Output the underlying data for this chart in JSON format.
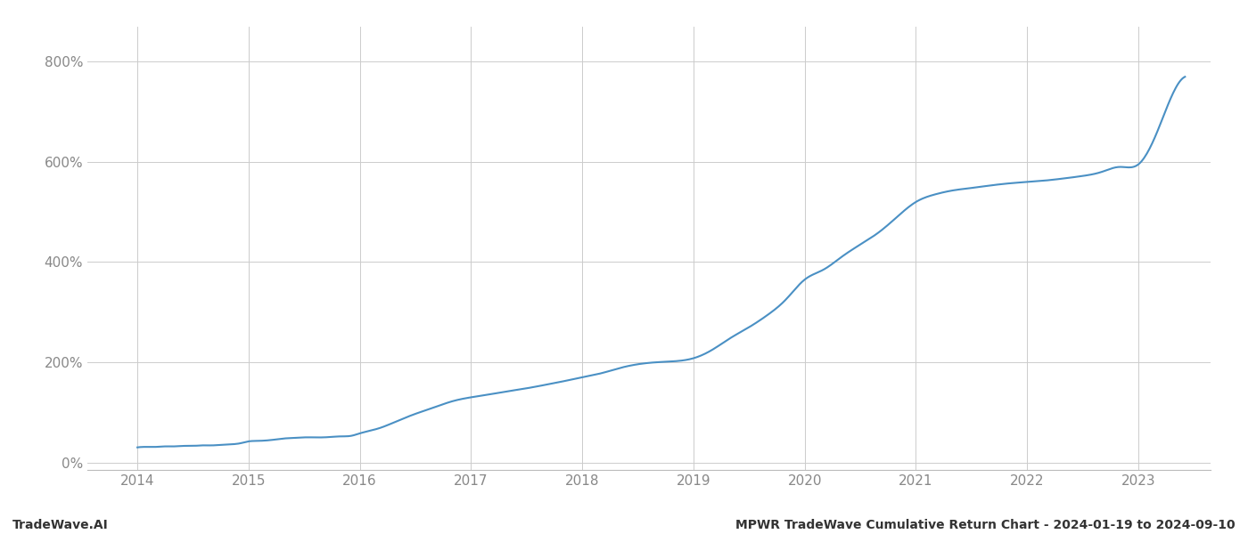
{
  "footer_left": "TradeWave.AI",
  "footer_right": "MPWR TradeWave Cumulative Return Chart - 2024-01-19 to 2024-09-10",
  "line_color": "#4a90c4",
  "background_color": "#ffffff",
  "grid_color": "#cccccc",
  "axis_color": "#888888",
  "x_years": [
    2014,
    2015,
    2016,
    2017,
    2018,
    2019,
    2020,
    2021,
    2022,
    2023
  ],
  "y_ticks": [
    0,
    200,
    400,
    600,
    800
  ],
  "ylim": [
    -15,
    870
  ],
  "xlim": [
    2013.55,
    2023.65
  ],
  "data_x": [
    2014.0,
    2014.08,
    2014.17,
    2014.25,
    2014.33,
    2014.42,
    2014.5,
    2014.58,
    2014.67,
    2014.75,
    2014.83,
    2014.92,
    2015.0,
    2015.08,
    2015.17,
    2015.25,
    2015.33,
    2015.42,
    2015.5,
    2015.58,
    2015.67,
    2015.75,
    2015.83,
    2015.92,
    2016.0,
    2016.17,
    2016.33,
    2016.5,
    2016.67,
    2016.83,
    2017.0,
    2017.17,
    2017.33,
    2017.5,
    2017.67,
    2017.83,
    2018.0,
    2018.17,
    2018.33,
    2018.5,
    2018.67,
    2018.83,
    2019.0,
    2019.17,
    2019.33,
    2019.5,
    2019.67,
    2019.83,
    2020.0,
    2020.17,
    2020.33,
    2020.5,
    2020.67,
    2020.83,
    2021.0,
    2021.17,
    2021.33,
    2021.5,
    2021.67,
    2021.83,
    2022.0,
    2022.17,
    2022.33,
    2022.5,
    2022.67,
    2022.83,
    2023.0,
    2023.17,
    2023.33,
    2023.42
  ],
  "data_y": [
    30,
    31,
    31,
    32,
    32,
    33,
    33,
    34,
    34,
    35,
    36,
    38,
    42,
    43,
    44,
    46,
    48,
    49,
    50,
    50,
    50,
    51,
    52,
    53,
    58,
    68,
    82,
    97,
    110,
    122,
    130,
    136,
    142,
    148,
    155,
    162,
    170,
    178,
    188,
    196,
    200,
    202,
    208,
    225,
    248,
    270,
    295,
    325,
    365,
    385,
    410,
    435,
    460,
    490,
    520,
    535,
    543,
    548,
    553,
    557,
    560,
    563,
    567,
    572,
    580,
    590,
    595,
    660,
    745,
    770
  ]
}
